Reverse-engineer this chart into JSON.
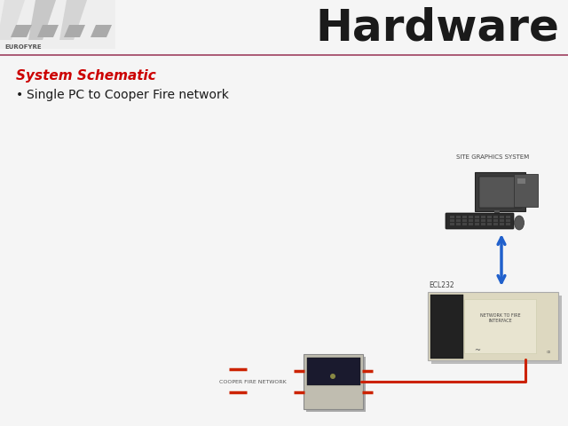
{
  "title": "Hardware",
  "subtitle": "System Schematic",
  "bullet_text": "Single PC to Cooper Fire network",
  "bg_color": "#f5f5f5",
  "title_color": "#1a1a1a",
  "subtitle_color": "#cc0000",
  "bullet_color": "#1a1a1a",
  "header_line_color": "#9e4060",
  "arrow_color": "#2060cc",
  "cable_color": "#cc2200",
  "label_pc": "SITE GRAPHICS SYSTEM",
  "label_ecl": "ECL232",
  "label_fire": "COOPER FIRE NETWORK",
  "logo_stripe_color": "#cccccc",
  "logo_dark_color": "#888888"
}
